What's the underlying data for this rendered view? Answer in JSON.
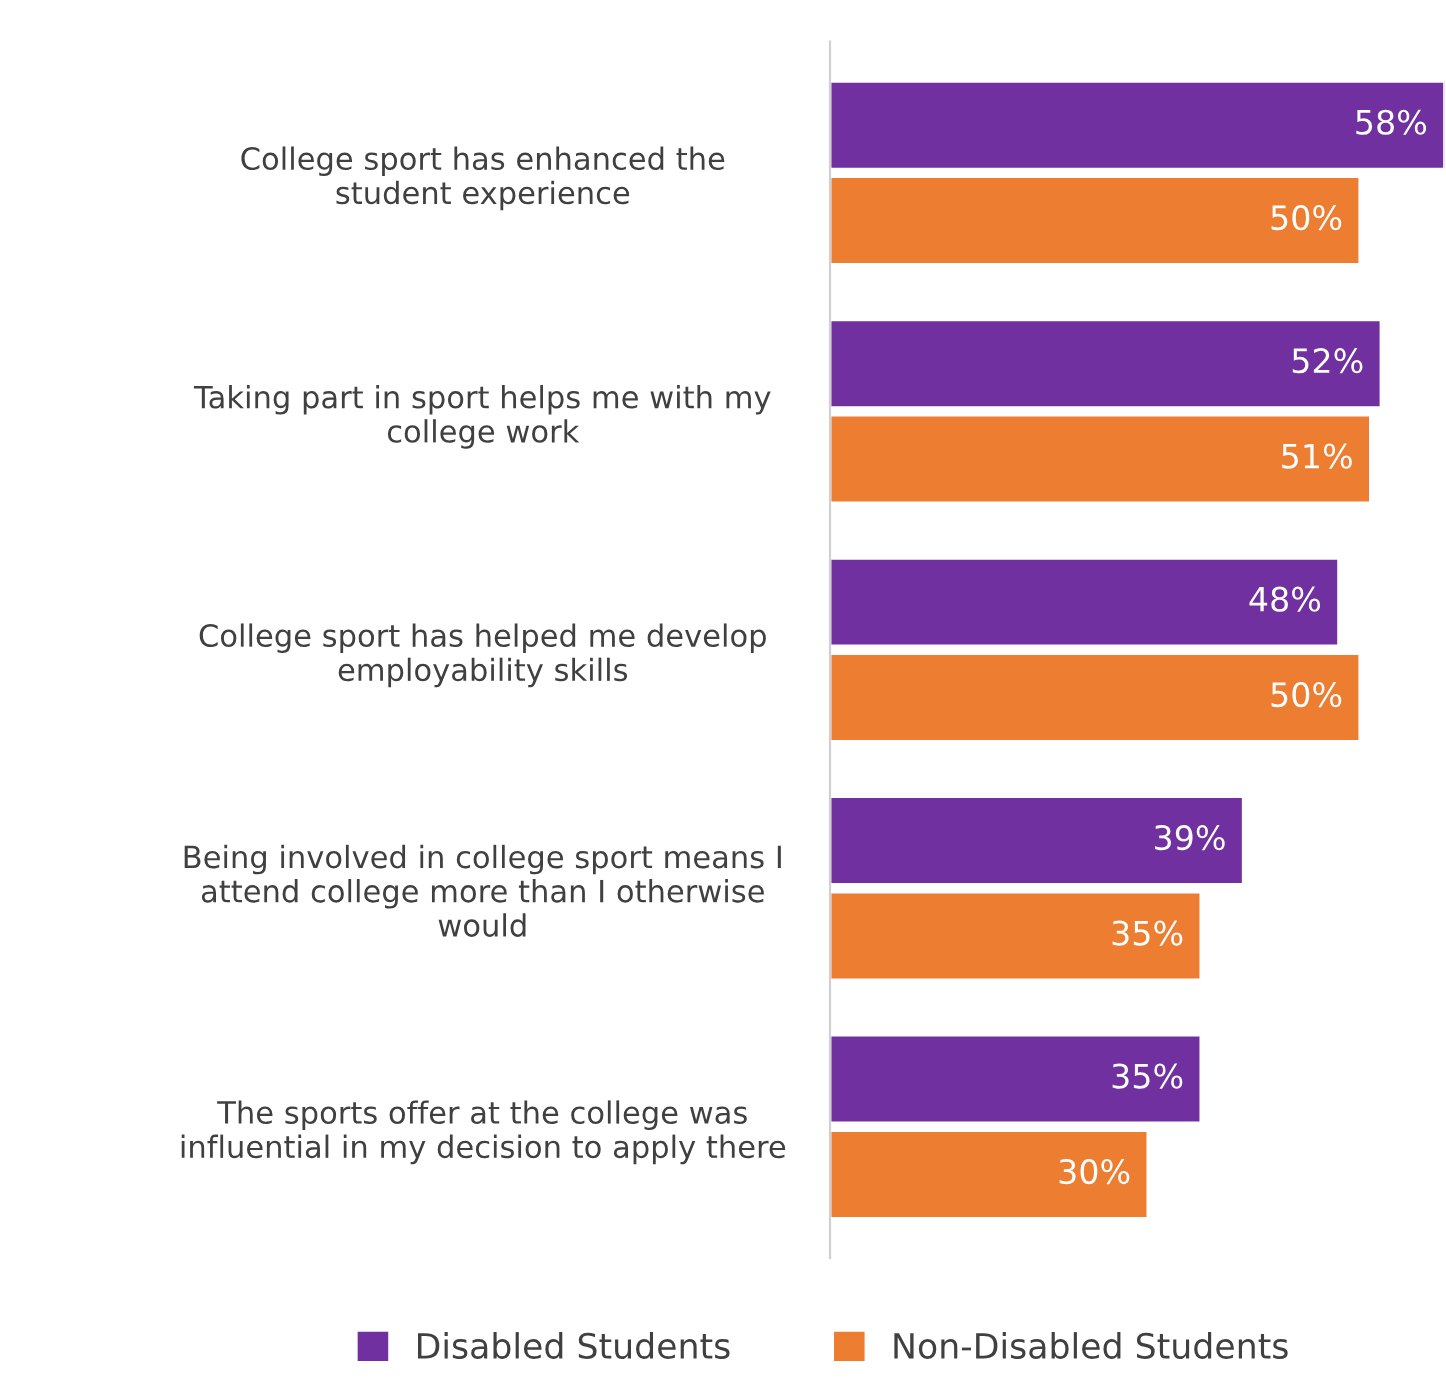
{
  "chart_data": {
    "type": "bar",
    "orientation": "horizontal",
    "legend": "bottom",
    "grid": false,
    "categories": [
      "College sport has enhanced the\nstudent experience",
      "Taking part in sport helps me with my\ncollege work",
      "College sport has helped me develop\nemployability skills",
      "Being involved in college sport means I\nattend college more than I otherwise\nwould",
      "The sports offer at the college was\ninfluential in my decision to apply there"
    ],
    "series": [
      {
        "name": "Disabled Students",
        "color": "#7030a0",
        "values": [
          58,
          52,
          48,
          39,
          35
        ],
        "value_labels": [
          "58%",
          "52%",
          "48%",
          "39%",
          "35%"
        ]
      },
      {
        "name": "Non-Disabled Students",
        "color": "#ed7d31",
        "values": [
          50,
          51,
          50,
          35,
          30
        ],
        "value_labels": [
          "50%",
          "51%",
          "50%",
          "35%",
          "30%"
        ]
      }
    ]
  }
}
